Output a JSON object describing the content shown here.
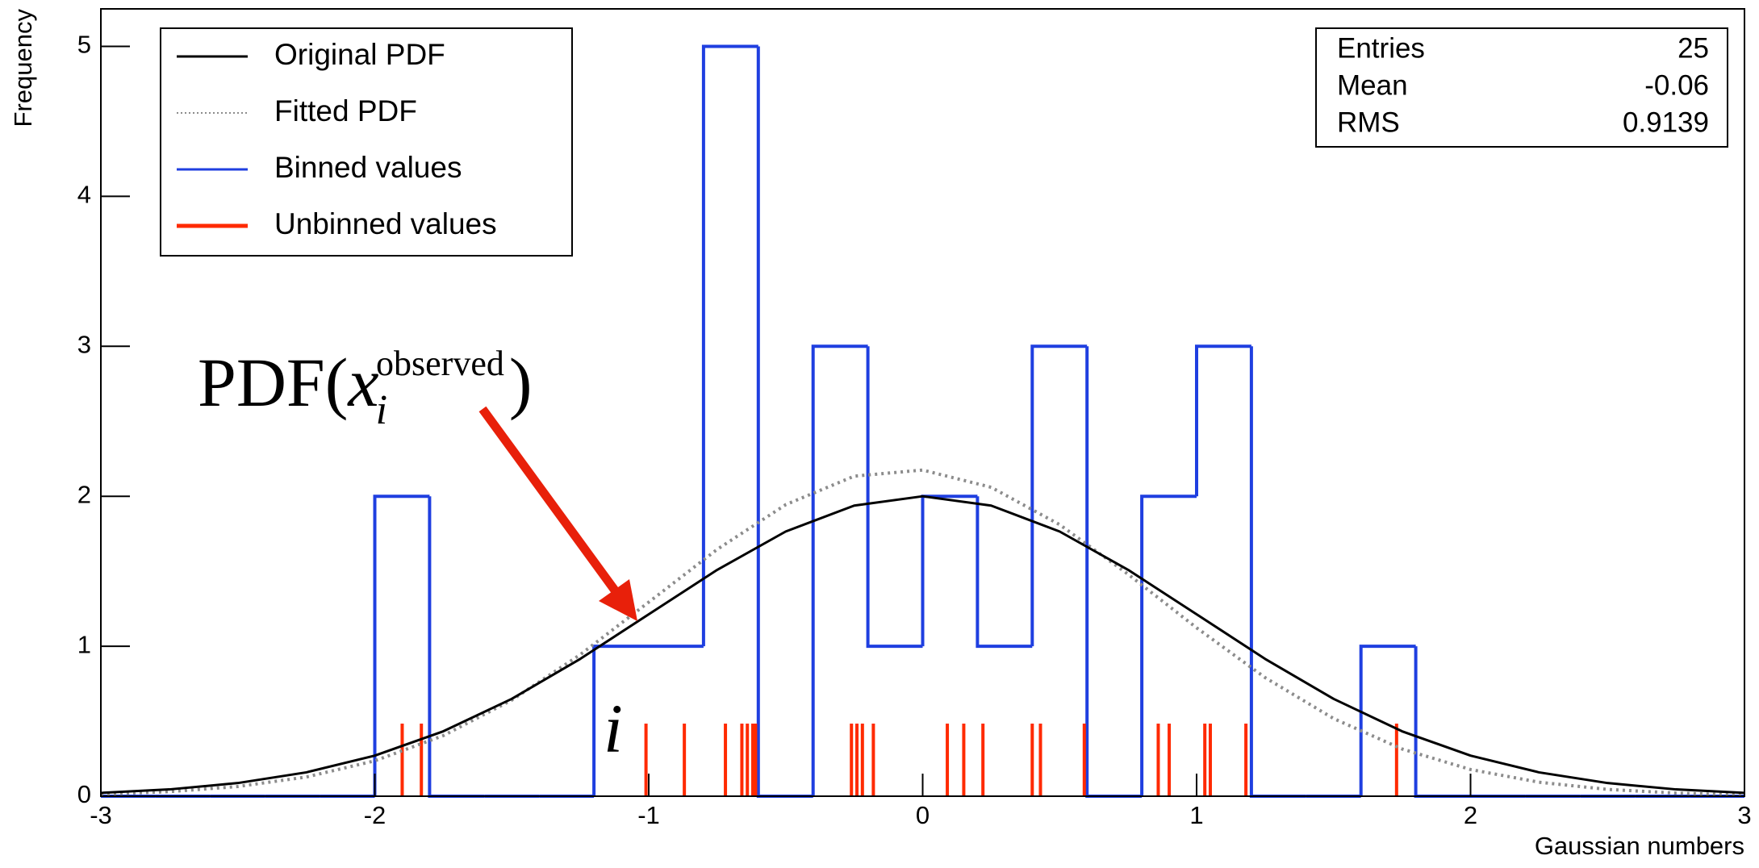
{
  "chart_data": {
    "type": "histogram",
    "xlabel": "Gaussian numbers",
    "ylabel": "Frequency",
    "xlim": [
      -3,
      3
    ],
    "ylim": [
      0,
      5.25
    ],
    "xticks": [
      -3,
      -2,
      -1,
      0,
      1,
      2,
      3
    ],
    "yticks": [
      0,
      1,
      2,
      3,
      4,
      5
    ],
    "bins": [
      -3,
      -2.8,
      -2.6,
      -2.4,
      -2.2,
      -2,
      -1.8,
      -1.6,
      -1.4,
      -1.2,
      -1,
      -0.8,
      -0.6,
      -0.4,
      -0.2,
      0,
      0.2,
      0.4,
      0.6,
      0.8,
      1,
      1.2,
      1.4,
      1.6,
      1.8,
      2,
      2.2,
      2.4,
      2.6,
      2.8,
      3
    ],
    "series": [
      {
        "name": "Original PDF",
        "color": "#000000",
        "style": "line",
        "x": [
          -3,
          -2.75,
          -2.5,
          -2.25,
          -2,
          -1.75,
          -1.5,
          -1.25,
          -1,
          -0.75,
          -0.5,
          -0.25,
          0,
          0.25,
          0.5,
          0.75,
          1,
          1.25,
          1.5,
          1.75,
          2,
          2.25,
          2.5,
          2.75,
          3
        ],
        "values": [
          0.0222,
          0.0454,
          0.0878,
          0.159,
          0.2707,
          0.4328,
          0.6492,
          0.9157,
          1.2131,
          1.5093,
          1.765,
          1.938,
          2,
          1.938,
          1.765,
          1.5093,
          1.2131,
          0.9157,
          0.6492,
          0.4328,
          0.2707,
          0.159,
          0.0878,
          0.0454,
          0.0222
        ]
      },
      {
        "name": "Fitted PDF",
        "color": "#8c8c8c",
        "style": "dotted",
        "x": [
          -3,
          -2.75,
          -2.5,
          -2.25,
          -2,
          -1.75,
          -1.5,
          -1.25,
          -1,
          -0.75,
          -0.5,
          -0.25,
          0,
          0.25,
          0.5,
          0.75,
          1,
          1.25,
          1.5,
          1.75,
          2,
          2.25,
          2.5,
          2.75,
          3
        ],
        "values": [
          0.0132,
          0.0304,
          0.0647,
          0.128,
          0.236,
          0.404,
          0.641,
          0.944,
          1.294,
          1.646,
          1.944,
          2.134,
          2.175,
          2.06,
          1.811,
          1.48,
          1.123,
          0.791,
          0.518,
          0.315,
          0.178,
          0.0933,
          0.0454,
          0.0206,
          0.0086
        ]
      },
      {
        "name": "Binned values",
        "color": "#1f3fe0",
        "style": "step",
        "values": [
          0,
          0,
          0,
          0,
          0,
          2,
          0,
          0,
          0,
          1,
          1,
          5,
          0,
          3,
          1,
          2,
          1,
          3,
          0,
          2,
          3,
          0,
          0,
          1,
          0,
          0,
          0,
          0,
          0,
          0
        ]
      },
      {
        "name": "Unbinned values",
        "color": "#ff2a00",
        "style": "rug",
        "x": [
          -1.9,
          -1.83,
          -1.01,
          -0.87,
          -0.72,
          -0.66,
          -0.64,
          -0.62,
          -0.61,
          -0.26,
          -0.24,
          -0.22,
          -0.18,
          0.09,
          0.15,
          0.22,
          0.4,
          0.43,
          0.59,
          0.86,
          0.9,
          1.03,
          1.05,
          1.18,
          1.73
        ]
      }
    ],
    "stats": {
      "labels": [
        "Entries",
        "Mean",
        "RMS"
      ],
      "values": [
        25,
        -0.06,
        0.9139
      ]
    },
    "annotation": {
      "function": "PDF(",
      "variable": "x",
      "subscript": "i",
      "superscript": "observed",
      "close": ")"
    },
    "index_label": "i"
  }
}
